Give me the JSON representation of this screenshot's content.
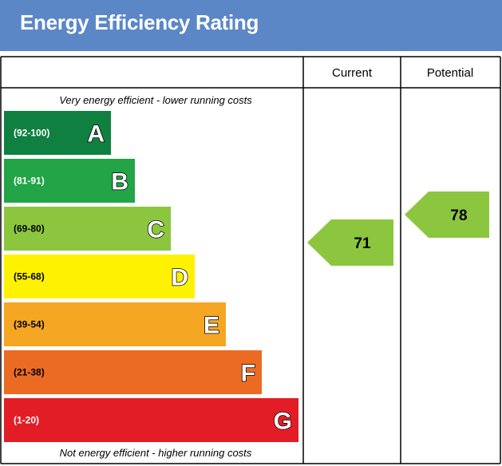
{
  "header": {
    "title": "Energy Efficiency Rating"
  },
  "table": {
    "col_current": "Current",
    "col_potential": "Potential",
    "top_note": "Very energy efficient - lower running costs",
    "bottom_note": "Not energy efficient - higher running costs"
  },
  "chart_data": {
    "type": "bar",
    "title": "Energy Efficiency Rating",
    "bands": [
      {
        "letter": "A",
        "range": "(92-100)",
        "min": 92,
        "max": 100,
        "color": "#0f8040",
        "range_color": "#ffffff",
        "letter_color": "#ffffff"
      },
      {
        "letter": "B",
        "range": "(81-91)",
        "min": 81,
        "max": 91,
        "color": "#22a447",
        "range_color": "#ffffff",
        "letter_color": "#ffffff"
      },
      {
        "letter": "C",
        "range": "(69-80)",
        "min": 69,
        "max": 80,
        "color": "#8cc63f",
        "range_color": "#000000",
        "letter_color": "#ffffff"
      },
      {
        "letter": "D",
        "range": "(55-68)",
        "min": 55,
        "max": 68,
        "color": "#fff200",
        "range_color": "#000000",
        "letter_color": "#ffffff"
      },
      {
        "letter": "E",
        "range": "(39-54)",
        "min": 39,
        "max": 54,
        "color": "#f5a623",
        "range_color": "#000000",
        "letter_color": "#ffffff"
      },
      {
        "letter": "F",
        "range": "(21-38)",
        "min": 21,
        "max": 38,
        "color": "#ec6b23",
        "range_color": "#000000",
        "letter_color": "#ffffff"
      },
      {
        "letter": "G",
        "range": "(1-20)",
        "min": 1,
        "max": 20,
        "color": "#e31d25",
        "range_color": "#ffffff",
        "letter_color": "#ffffff"
      }
    ],
    "current": {
      "value": 71,
      "band": "C",
      "color": "#8cc63f"
    },
    "potential": {
      "value": 78,
      "band": "C",
      "color": "#8cc63f"
    }
  }
}
